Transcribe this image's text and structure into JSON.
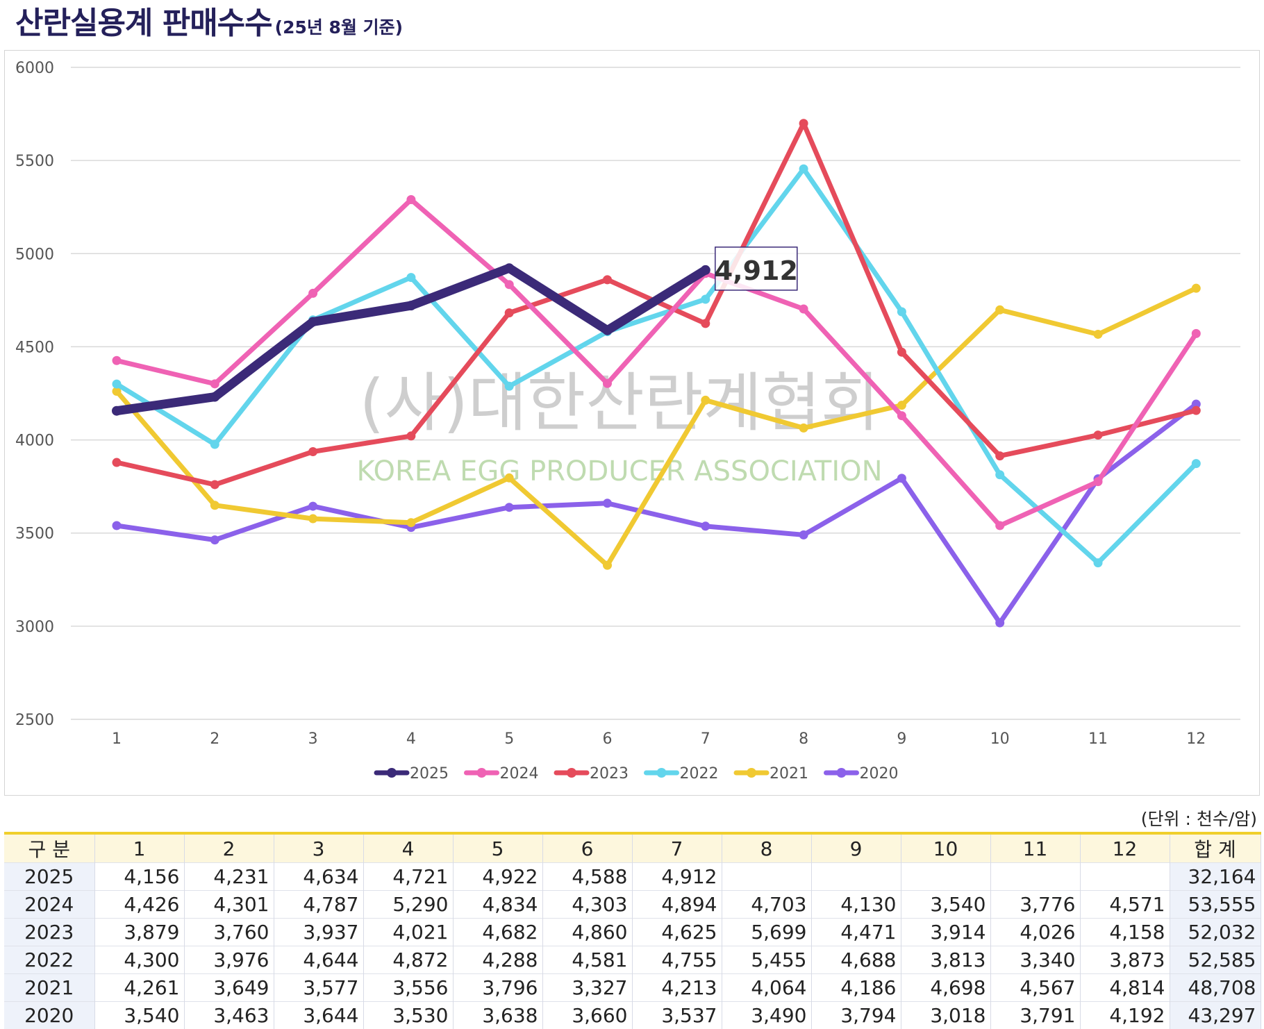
{
  "title": {
    "main": "산란실용계 판매수수",
    "sub": "(25년 8월 기준)"
  },
  "watermark": {
    "line1": "(사)대한산란계협회",
    "line2": "KOREA EGG PRODUCER ASSOCIATION"
  },
  "unit_note": "(단위 : 천수/암)",
  "chart_data": {
    "type": "line",
    "title": "산란실용계 판매수수",
    "subtitle": "(25년 8월 기준)",
    "xlabel": "",
    "ylabel": "",
    "x": [
      1,
      2,
      3,
      4,
      5,
      6,
      7,
      8,
      9,
      10,
      11,
      12
    ],
    "ylim": [
      2500,
      6000
    ],
    "yticks": [
      2500,
      3000,
      3500,
      4000,
      4500,
      5000,
      5500,
      6000
    ],
    "grid": "horizontal",
    "legend_position": "bottom",
    "series": [
      {
        "name": "2025",
        "color": "#3b2a78",
        "values": [
          4156,
          4231,
          4634,
          4721,
          4922,
          4588,
          4912,
          null,
          null,
          null,
          null,
          null
        ]
      },
      {
        "name": "2024",
        "color": "#ef62b4",
        "values": [
          4426,
          4301,
          4787,
          5290,
          4834,
          4303,
          4894,
          4703,
          4130,
          3540,
          3776,
          4571
        ]
      },
      {
        "name": "2023",
        "color": "#e54b5b",
        "values": [
          3879,
          3760,
          3937,
          4021,
          4682,
          4860,
          4625,
          5699,
          4471,
          3914,
          4026,
          4158
        ]
      },
      {
        "name": "2022",
        "color": "#62d5ec",
        "values": [
          4300,
          3976,
          4644,
          4872,
          4288,
          4581,
          4755,
          5455,
          4688,
          3813,
          3340,
          3873
        ]
      },
      {
        "name": "2021",
        "color": "#f0c932",
        "values": [
          4261,
          3649,
          3577,
          3556,
          3796,
          3327,
          4213,
          4064,
          4186,
          4698,
          4567,
          4814
        ]
      },
      {
        "name": "2020",
        "color": "#8b61ea",
        "values": [
          3540,
          3463,
          3644,
          3530,
          3638,
          3660,
          3537,
          3490,
          3794,
          3018,
          3791,
          4192
        ]
      }
    ],
    "annotations": [
      {
        "series": "2025",
        "x": 7,
        "text": "4,912"
      }
    ]
  },
  "table": {
    "headers": [
      "구 분",
      "1",
      "2",
      "3",
      "4",
      "5",
      "6",
      "7",
      "8",
      "9",
      "10",
      "11",
      "12",
      "합 계"
    ],
    "rows": [
      [
        "2025",
        "4,156",
        "4,231",
        "4,634",
        "4,721",
        "4,922",
        "4,588",
        "4,912",
        "",
        "",
        "",
        "",
        "",
        "32,164"
      ],
      [
        "2024",
        "4,426",
        "4,301",
        "4,787",
        "5,290",
        "4,834",
        "4,303",
        "4,894",
        "4,703",
        "4,130",
        "3,540",
        "3,776",
        "4,571",
        "53,555"
      ],
      [
        "2023",
        "3,879",
        "3,760",
        "3,937",
        "4,021",
        "4,682",
        "4,860",
        "4,625",
        "5,699",
        "4,471",
        "3,914",
        "4,026",
        "4,158",
        "52,032"
      ],
      [
        "2022",
        "4,300",
        "3,976",
        "4,644",
        "4,872",
        "4,288",
        "4,581",
        "4,755",
        "5,455",
        "4,688",
        "3,813",
        "3,340",
        "3,873",
        "52,585"
      ],
      [
        "2021",
        "4,261",
        "3,649",
        "3,577",
        "3,556",
        "3,796",
        "3,327",
        "4,213",
        "4,064",
        "4,186",
        "4,698",
        "4,567",
        "4,814",
        "48,708"
      ],
      [
        "2020",
        "3,540",
        "3,463",
        "3,644",
        "3,530",
        "3,638",
        "3,660",
        "3,537",
        "3,490",
        "3,794",
        "3,018",
        "3,791",
        "4,192",
        "43,297"
      ]
    ]
  }
}
